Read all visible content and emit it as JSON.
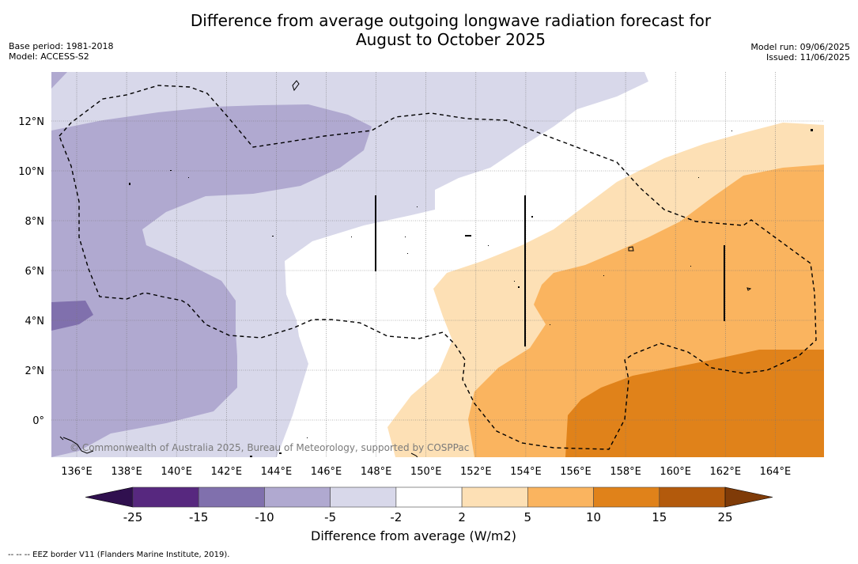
{
  "title": {
    "line1": "Difference from average outgoing longwave radiation forecast for",
    "line2": "August to October 2025"
  },
  "meta": {
    "base_period": "Base period: 1981-2018",
    "model": "Model: ACCESS-S2",
    "model_run": "Model run: 09/06/2025",
    "issued": "Issued: 11/06/2025"
  },
  "copyright": "© Commonwealth of Australia 2025, Bureau of Meteorology, supported by COSPPac",
  "lon_ticks": [
    "136°E",
    "138°E",
    "140°E",
    "142°E",
    "144°E",
    "146°E",
    "148°E",
    "150°E",
    "152°E",
    "154°E",
    "156°E",
    "158°E",
    "160°E",
    "162°E",
    "164°E"
  ],
  "lat_ticks": [
    "12°N",
    "10°N",
    "8°N",
    "6°N",
    "4°N",
    "2°N",
    "0°"
  ],
  "colorbar": {
    "title": "Difference from average (W/m2)",
    "labels": [
      "-25",
      "-15",
      "-10",
      "-5",
      "-2",
      "2",
      "5",
      "10",
      "15",
      "25"
    ],
    "colors": [
      "#30104f",
      "#57287f",
      "#8070ad",
      "#b0a9d0",
      "#d8d8ea",
      "#ffffff",
      "#fde0b5",
      "#fab45f",
      "#e0821a",
      "#b35a0c",
      "#7f3b08"
    ]
  },
  "footnote": "--  --  -- EEZ border V11 (Flanders Marine Institute, 2019)."
}
